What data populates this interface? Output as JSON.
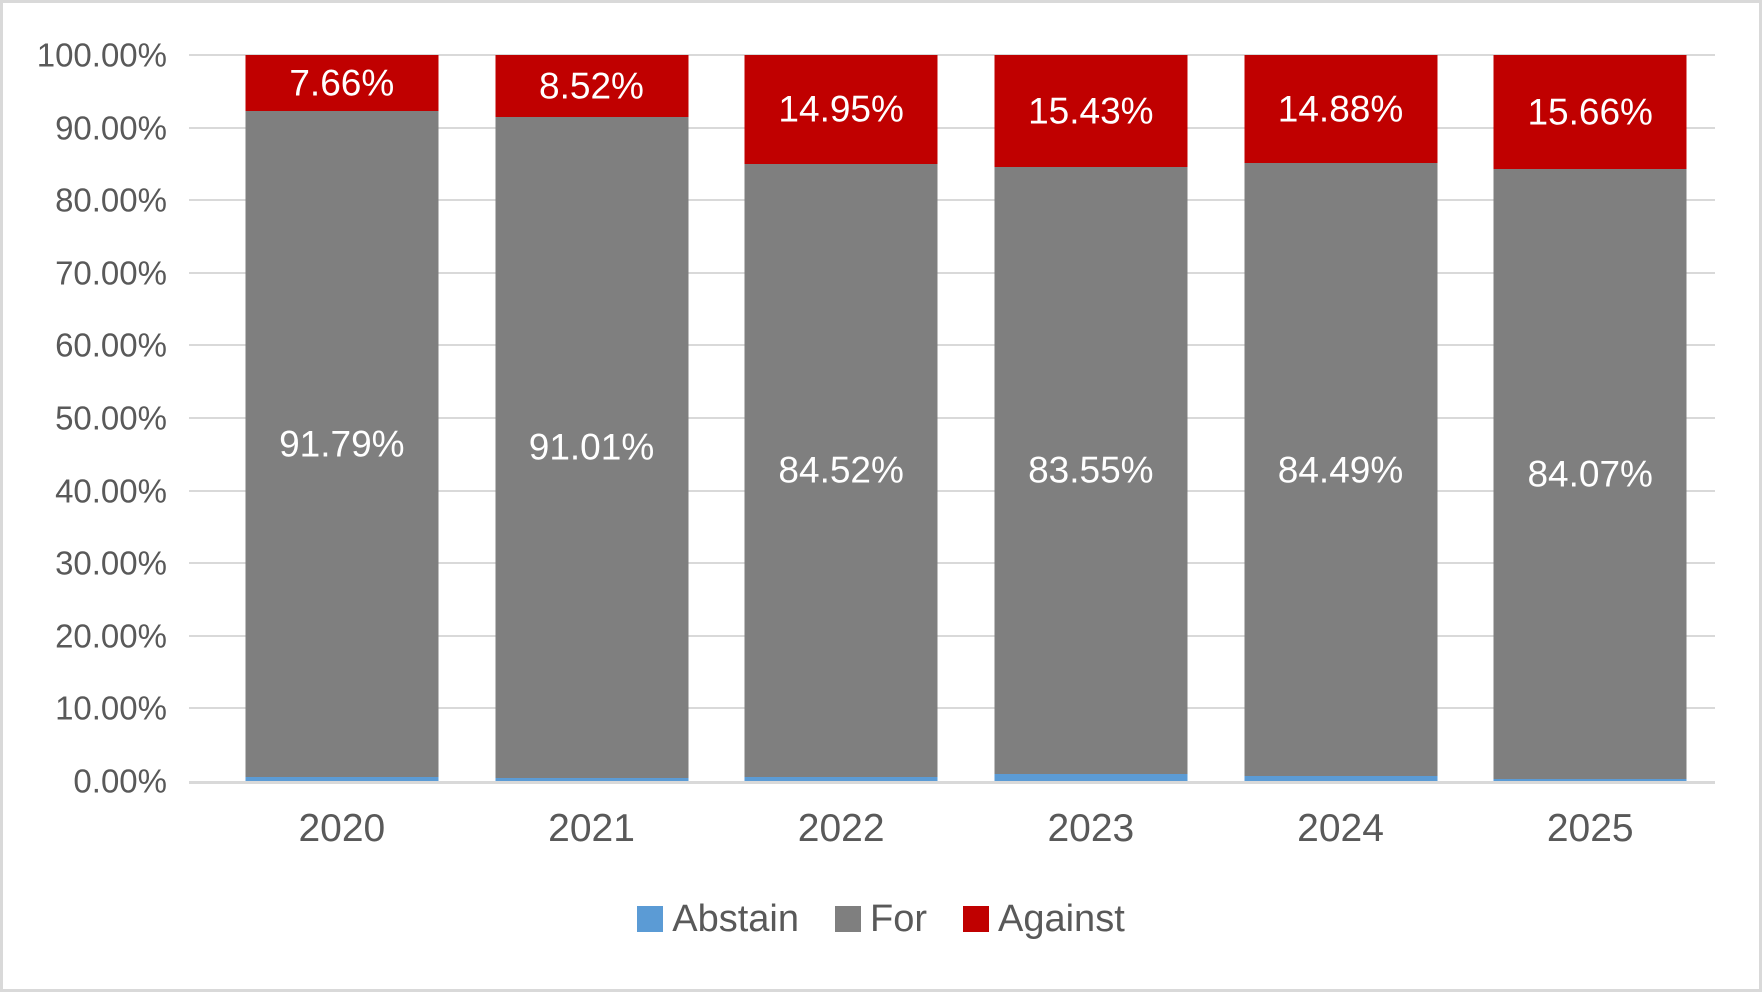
{
  "chart_data": {
    "type": "bar",
    "variant": "stacked-100-percent-column",
    "categories": [
      "2020",
      "2021",
      "2022",
      "2023",
      "2024",
      "2025"
    ],
    "series": [
      {
        "name": "Abstain",
        "color": "#5B9BD5",
        "values": [
          0.55,
          0.47,
          0.53,
          1.02,
          0.63,
          0.27
        ],
        "show_labels": false
      },
      {
        "name": "For",
        "color": "#7F7F7F",
        "values": [
          91.79,
          91.01,
          84.52,
          83.55,
          84.49,
          84.07
        ],
        "show_labels": true,
        "labels": [
          "91.79%",
          "91.01%",
          "84.52%",
          "83.55%",
          "84.49%",
          "84.07%"
        ]
      },
      {
        "name": "Against",
        "color": "#C00000",
        "values": [
          7.66,
          8.52,
          14.95,
          15.43,
          14.88,
          15.66
        ],
        "show_labels": true,
        "labels": [
          "7.66%",
          "8.52%",
          "14.95%",
          "15.43%",
          "14.88%",
          "15.66%"
        ]
      }
    ],
    "y_axis": {
      "min": 0,
      "max": 100,
      "step": 10,
      "tick_labels": [
        "0.00%",
        "10.00%",
        "20.00%",
        "30.00%",
        "40.00%",
        "50.00%",
        "60.00%",
        "70.00%",
        "80.00%",
        "90.00%",
        "100.00%"
      ]
    },
    "legend": {
      "position": "bottom",
      "entries": [
        {
          "label": "Abstain",
          "color": "#5B9BD5"
        },
        {
          "label": "For",
          "color": "#7F7F7F"
        },
        {
          "label": "Against",
          "color": "#C00000"
        }
      ]
    },
    "grid": true,
    "data_label_color": "#FFFFFF"
  },
  "colors": {
    "axis_text": "#595959",
    "gridline": "#D9D9D9",
    "frame_border": "#D9D9D9",
    "background": "#FFFFFF"
  }
}
